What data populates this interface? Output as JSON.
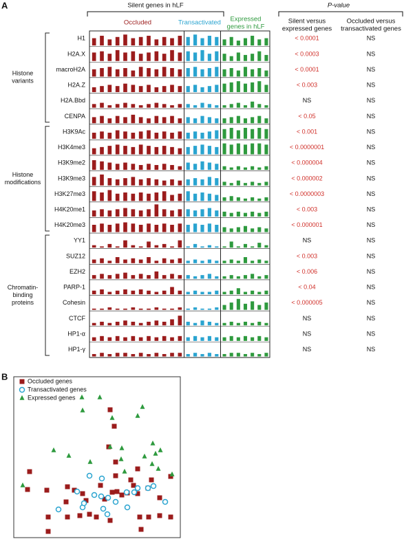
{
  "panel_a": {
    "label": "A",
    "silent_header": "Silent genes in hLF",
    "group_headers": {
      "occluded": "Occluded",
      "transactivated": "Transactivated",
      "expressed": [
        "Expressed",
        "genes in hLF"
      ]
    },
    "pvalue_header": "P-value",
    "pvalue_columns": [
      [
        "Silent versus",
        "expressed genes"
      ],
      [
        "Occluded versus",
        "transactivated genes"
      ]
    ],
    "colors": {
      "occluded": "#9b1c1c",
      "transactivated": "#2aa4d0",
      "expressed": "#2e9a3e"
    },
    "bar_ylim": [
      0,
      10
    ],
    "row_groups": [
      {
        "lines": [
          "Histone",
          "variants"
        ],
        "rows": [
          0,
          5
        ]
      },
      {
        "lines": [
          "Histone",
          "modifications"
        ],
        "rows": [
          6,
          12
        ]
      },
      {
        "lines": [
          "Chromatin-",
          "binding",
          "proteins"
        ],
        "rows": [
          13,
          20
        ]
      }
    ],
    "rows": [
      {
        "name": "H1",
        "occluded": [
          6,
          8,
          5,
          7,
          9,
          6,
          7,
          8,
          5,
          7,
          6,
          8
        ],
        "transactivated": [
          7,
          9,
          6,
          8,
          7
        ],
        "expressed": [
          5,
          7,
          4,
          6,
          8,
          5,
          6
        ],
        "p_silent_vs_expressed": "< 0.0001",
        "p_occluded_vs_transactivated": "NS"
      },
      {
        "name": "H2A.X",
        "occluded": [
          7,
          8,
          6,
          9,
          7,
          8,
          6,
          7,
          8,
          6,
          9,
          7
        ],
        "transactivated": [
          8,
          7,
          9,
          6,
          8
        ],
        "expressed": [
          6,
          4,
          7,
          5,
          6,
          8,
          5
        ],
        "p_silent_vs_expressed": "< 0.0003",
        "p_occluded_vs_transactivated": "NS"
      },
      {
        "name": "macroH2A",
        "occluded": [
          6,
          7,
          8,
          6,
          7,
          5,
          8,
          7,
          6,
          8,
          7,
          6
        ],
        "transactivated": [
          7,
          8,
          6,
          7,
          8
        ],
        "expressed": [
          6,
          7,
          5,
          8,
          6,
          7,
          5
        ],
        "p_silent_vs_expressed": "< 0.0001",
        "p_occluded_vs_transactivated": "NS"
      },
      {
        "name": "H2A.Z",
        "occluded": [
          4,
          5,
          6,
          5,
          7,
          6,
          5,
          6,
          4,
          5,
          6,
          5
        ],
        "transactivated": [
          5,
          6,
          4,
          5,
          6
        ],
        "expressed": [
          7,
          8,
          9,
          7,
          8,
          9,
          6
        ],
        "p_silent_vs_expressed": "< 0.003",
        "p_occluded_vs_transactivated": "NS"
      },
      {
        "name": "H2A.Bbd",
        "occluded": [
          3,
          4,
          2,
          3,
          4,
          3,
          2,
          3,
          4,
          3,
          2,
          3
        ],
        "transactivated": [
          3,
          2,
          4,
          3,
          2
        ],
        "expressed": [
          2,
          3,
          4,
          2,
          5,
          3,
          2
        ],
        "p_silent_vs_expressed": "NS",
        "p_occluded_vs_transactivated": "NS"
      },
      {
        "name": "CENPA",
        "occluded": [
          5,
          6,
          4,
          6,
          5,
          7,
          5,
          4,
          6,
          5,
          6,
          4
        ],
        "transactivated": [
          5,
          4,
          6,
          5,
          4
        ],
        "expressed": [
          4,
          5,
          6,
          4,
          5,
          6,
          4
        ],
        "p_silent_vs_expressed": "< 0.05",
        "p_occluded_vs_transactivated": "NS"
      },
      {
        "name": "H3K9Ac",
        "occluded": [
          5,
          6,
          5,
          7,
          6,
          5,
          6,
          7,
          5,
          6,
          5,
          6
        ],
        "transactivated": [
          5,
          6,
          5,
          6,
          7
        ],
        "expressed": [
          8,
          9,
          7,
          9,
          8,
          9,
          8
        ],
        "p_silent_vs_expressed": "< 0.001",
        "p_occluded_vs_transactivated": "NS"
      },
      {
        "name": "H3K4me3",
        "occluded": [
          5,
          6,
          7,
          8,
          7,
          6,
          8,
          7,
          6,
          7,
          6,
          5
        ],
        "transactivated": [
          6,
          7,
          8,
          7,
          6
        ],
        "expressed": [
          9,
          8,
          9,
          8,
          9,
          9,
          8
        ],
        "p_silent_vs_expressed": "< 0.0000001",
        "p_occluded_vs_transactivated": "NS"
      },
      {
        "name": "H3K9me2",
        "occluded": [
          8,
          7,
          6,
          5,
          6,
          5,
          4,
          5,
          4,
          5,
          4,
          3
        ],
        "transactivated": [
          6,
          5,
          7,
          6,
          5
        ],
        "expressed": [
          3,
          2,
          3,
          2,
          3,
          2,
          3
        ],
        "p_silent_vs_expressed": "< 0.000004",
        "p_occluded_vs_transactivated": "NS"
      },
      {
        "name": "H3K9me3",
        "occluded": [
          7,
          9,
          6,
          5,
          6,
          7,
          5,
          6,
          5,
          4,
          5,
          4
        ],
        "transactivated": [
          5,
          6,
          5,
          7,
          6
        ],
        "expressed": [
          3,
          2,
          4,
          2,
          3,
          2,
          3
        ],
        "p_silent_vs_expressed": "< 0.000002",
        "p_occluded_vs_transactivated": "NS"
      },
      {
        "name": "H3K27me3",
        "occluded": [
          8,
          7,
          9,
          6,
          7,
          6,
          7,
          6,
          7,
          8,
          5,
          6
        ],
        "transactivated": [
          8,
          6,
          7,
          6,
          5
        ],
        "expressed": [
          3,
          4,
          3,
          2,
          3,
          2,
          3
        ],
        "p_silent_vs_expressed": "< 0.0000003",
        "p_occluded_vs_transactivated": "NS"
      },
      {
        "name": "H4K20me1",
        "occluded": [
          5,
          6,
          5,
          6,
          7,
          6,
          5,
          6,
          10,
          6,
          5,
          6
        ],
        "transactivated": [
          6,
          5,
          6,
          7,
          5
        ],
        "expressed": [
          4,
          3,
          4,
          3,
          4,
          3,
          4
        ],
        "p_silent_vs_expressed": "< 0.003",
        "p_occluded_vs_transactivated": "NS"
      },
      {
        "name": "H4K20me3",
        "occluded": [
          6,
          7,
          6,
          7,
          8,
          7,
          6,
          7,
          6,
          7,
          6,
          7
        ],
        "transactivated": [
          6,
          7,
          6,
          7,
          6
        ],
        "expressed": [
          4,
          3,
          4,
          5,
          3,
          4,
          3
        ],
        "p_silent_vs_expressed": "< 0.000001",
        "p_occluded_vs_transactivated": "NS"
      },
      {
        "name": "YY1",
        "occluded": [
          2,
          1,
          3,
          1,
          6,
          2,
          1,
          5,
          2,
          3,
          1,
          6
        ],
        "transactivated": [
          1,
          3,
          1,
          2,
          1
        ],
        "expressed": [
          1,
          5,
          1,
          3,
          1,
          4,
          2
        ],
        "p_silent_vs_expressed": "NS",
        "p_occluded_vs_transactivated": "NS"
      },
      {
        "name": "SUZ12",
        "occluded": [
          3,
          4,
          2,
          5,
          3,
          4,
          3,
          5,
          2,
          4,
          3,
          4
        ],
        "transactivated": [
          2,
          3,
          2,
          3,
          2
        ],
        "expressed": [
          2,
          3,
          2,
          5,
          2,
          3,
          2
        ],
        "p_silent_vs_expressed": "< 0.003",
        "p_occluded_vs_transactivated": "NS"
      },
      {
        "name": "EZH2",
        "occluded": [
          3,
          4,
          3,
          4,
          5,
          3,
          4,
          3,
          6,
          3,
          4,
          3
        ],
        "transactivated": [
          3,
          2,
          3,
          4,
          2
        ],
        "expressed": [
          2,
          3,
          2,
          3,
          4,
          2,
          3
        ],
        "p_silent_vs_expressed": "< 0.006",
        "p_occluded_vs_transactivated": "NS"
      },
      {
        "name": "PARP-1",
        "occluded": [
          3,
          4,
          2,
          3,
          4,
          3,
          4,
          3,
          2,
          3,
          6,
          3
        ],
        "transactivated": [
          2,
          3,
          2,
          2,
          3
        ],
        "expressed": [
          2,
          3,
          5,
          2,
          3,
          2,
          3
        ],
        "p_silent_vs_expressed": "< 0.04",
        "p_occluded_vs_transactivated": "NS"
      },
      {
        "name": "Cohesin",
        "occluded": [
          1,
          1,
          2,
          1,
          1,
          2,
          1,
          1,
          2,
          1,
          1,
          2
        ],
        "transactivated": [
          1,
          2,
          1,
          1,
          2
        ],
        "expressed": [
          4,
          6,
          9,
          5,
          7,
          4,
          6
        ],
        "p_silent_vs_expressed": "< 0.000005",
        "p_occluded_vs_transactivated": "NS"
      },
      {
        "name": "CTCF",
        "occluded": [
          2,
          3,
          2,
          3,
          4,
          3,
          2,
          3,
          4,
          3,
          5,
          8
        ],
        "transactivated": [
          3,
          2,
          4,
          3,
          2
        ],
        "expressed": [
          2,
          3,
          2,
          3,
          2,
          3,
          2
        ],
        "p_silent_vs_expressed": "NS",
        "p_occluded_vs_transactivated": "NS"
      },
      {
        "name": "HP1-α",
        "occluded": [
          3,
          4,
          3,
          4,
          3,
          4,
          3,
          4,
          3,
          4,
          3,
          4
        ],
        "transactivated": [
          3,
          4,
          3,
          4,
          3
        ],
        "expressed": [
          3,
          4,
          3,
          4,
          3,
          4,
          3
        ],
        "p_silent_vs_expressed": "NS",
        "p_occluded_vs_transactivated": "NS"
      },
      {
        "name": "HP1-γ",
        "occluded": [
          2,
          3,
          2,
          3,
          3,
          2,
          3,
          2,
          3,
          2,
          3,
          3
        ],
        "transactivated": [
          2,
          3,
          2,
          3,
          2
        ],
        "expressed": [
          2,
          3,
          3,
          2,
          3,
          2,
          3
        ],
        "p_silent_vs_expressed": "NS",
        "p_occluded_vs_transactivated": "NS"
      }
    ]
  },
  "panel_b": {
    "label": "B",
    "type": "scatter",
    "xlim": [
      0,
      242
    ],
    "ylim": [
      0,
      234
    ],
    "series": [
      {
        "name": "Occluded genes",
        "color": "#9b1c1c",
        "marker": "square",
        "x": [
          23,
          20,
          48,
          78,
          88,
          76,
          100,
          105,
          126,
          132,
          143,
          150,
          157,
          165,
          174,
          180,
          195,
          200,
          212,
          228,
          50,
          50,
          96,
          120,
          140,
          140,
          146,
          138,
          148,
          148,
          183,
          185,
          196,
          228,
          110,
          78,
          212,
          180,
          170
        ],
        "y": [
          96,
          70,
          69,
          74,
          69,
          52,
          64,
          54,
          76,
          56,
          66,
          67,
          62,
          65,
          76,
          64,
          72,
          84,
          58,
          89,
          30,
          9,
          32,
          30,
          25,
          186,
          162,
          132,
          110,
          90,
          30,
          12,
          30,
          30,
          34,
          30,
          32,
          100,
          84
        ]
      },
      {
        "name": "Transactivated genes",
        "color": "#2aa4d0",
        "marker": "circle",
        "x": [
          110,
          128,
          92,
          117,
          127,
          137,
          148,
          164,
          175,
          65,
          100,
          102,
          130,
          136,
          165,
          195,
          203,
          220,
          180
        ],
        "y": [
          90,
          86,
          67,
          62,
          60,
          58,
          52,
          66,
          66,
          41,
          44,
          50,
          42,
          34,
          44,
          72,
          75,
          52,
          72
        ]
      },
      {
        "name": "Expressed genes",
        "color": "#2e9a3e",
        "marker": "triangle",
        "x": [
          99,
          125,
          100,
          143,
          180,
          187,
          140,
          157,
          156,
          161,
          202,
          206,
          213,
          190,
          201,
          210,
          230,
          58,
          13,
          111,
          80
        ],
        "y": [
          204,
          204,
          185,
          174,
          177,
          190,
          132,
          130,
          114,
          96,
          137,
          122,
          127,
          118,
          107,
          100,
          92,
          127,
          76,
          110,
          119
        ]
      }
    ]
  }
}
